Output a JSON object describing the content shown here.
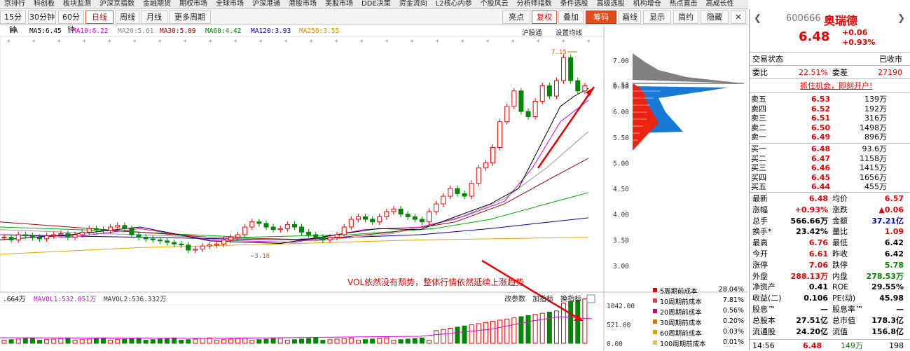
{
  "top_menu": [
    "京排行",
    "科创板",
    "板块监测",
    "沪深京指数",
    "金融期货",
    "期权市场",
    "全球市场",
    "沪深港通",
    "港股市场",
    "美股市场",
    "DDE决策",
    "资金流向",
    "L2核心内参",
    "个股风云",
    "分析师指数",
    "条件选股",
    "高级选股",
    "机构增仓",
    "热点直击",
    "高成长性"
  ],
  "tabs": [
    "15分钟",
    "30分钟",
    "60分钟",
    "日线",
    "周线",
    "月线",
    "更多周期",
    "沪股通",
    "亮点",
    "复权",
    "叠加",
    "筹码",
    "画线",
    "显示",
    "简约",
    "隐藏"
  ],
  "indicators": {
    "ma": "MA",
    "ma5": "MA5:6.45",
    "ma10": "MA10:6.22",
    "ma20": "MA20:5.61",
    "ma30": "MA30:5.09",
    "ma60": "MA60:4.42",
    "ma120": "MA120:3.93",
    "ma250": "MA250:3.55",
    "hgt": "沪股通",
    "setma": "设置均线"
  },
  "annot": {
    "high": "7.15",
    "low": "3.18",
    "text": "VOL依然没有颓势，整体行情依然延续上涨趋势"
  },
  "vol": {
    "vol": ".664万",
    "mavol1": "MAVOL1:532.051万",
    "mavol2": "MAVOL2:536.332万",
    "btn1": "改参数",
    "btn2": "加指标",
    "btn3": "换指标",
    "ax": [
      "1042.00",
      "521.00",
      "0.00"
    ]
  },
  "price_axis": [
    "7.00",
    "6.53",
    "6.50",
    "6.00",
    "5.50",
    "5.00",
    "4.50",
    "4.00",
    "3.50",
    "3.00"
  ],
  "cost_legend": [
    {
      "label": "5周期前成本",
      "val": "28.04%",
      "color": "#e00"
    },
    {
      "label": "10周期前成本",
      "val": "7.81%",
      "color": "#e04040"
    },
    {
      "label": "20周期前成本",
      "val": "0.56%",
      "color": "#d0007a"
    },
    {
      "label": "30周期前成本",
      "val": "0.20%",
      "color": "#e07000"
    },
    {
      "label": "60周期前成本",
      "val": "0.03%",
      "color": "#e0a000"
    },
    {
      "label": "100周期前成本",
      "val": "0.01%",
      "color": "#e0c060"
    }
  ],
  "stock": {
    "code": "600666",
    "name": "奥瑞德",
    "price": "6.48",
    "chg": "+0.06",
    "pct": "+0.93%",
    "status_label": "交易状态",
    "status": "已收市",
    "wb_label": "委比",
    "wb": "22.51%",
    "wc_label": "委差",
    "wc": "27190",
    "ad": "抓住机会，即刻开户!"
  },
  "asks": [
    {
      "l": "卖五",
      "p": "6.53",
      "v": "139万"
    },
    {
      "l": "卖四",
      "p": "6.52",
      "v": "192万"
    },
    {
      "l": "卖三",
      "p": "6.51",
      "v": "316万"
    },
    {
      "l": "卖二",
      "p": "6.50",
      "v": "1498万"
    },
    {
      "l": "卖一",
      "p": "6.49",
      "v": "896万"
    }
  ],
  "bids": [
    {
      "l": "买一",
      "p": "6.48",
      "v": "93.6万"
    },
    {
      "l": "买二",
      "p": "6.47",
      "v": "1158万"
    },
    {
      "l": "买三",
      "p": "6.46",
      "v": "1415万"
    },
    {
      "l": "买四",
      "p": "6.45",
      "v": "1656万"
    },
    {
      "l": "买五",
      "p": "6.44",
      "v": "455万"
    }
  ],
  "quote": [
    {
      "a": "最新",
      "av": "6.48",
      "ac": "red",
      "b": "均价",
      "bv": "6.57",
      "bc": "red"
    },
    {
      "a": "涨幅",
      "av": "+0.93%",
      "ac": "red",
      "b": "涨跌",
      "bv": "▲0.06",
      "bc": "red"
    },
    {
      "a": "总手",
      "av": "566.66万",
      "ac": "",
      "b": "金额",
      "bv": "37.21亿",
      "bc": "blue"
    },
    {
      "a": "换手*",
      "av": "23.42%",
      "ac": "",
      "b": "量比",
      "bv": "1.09",
      "bc": "red"
    },
    {
      "a": "最高",
      "av": "6.76",
      "ac": "red",
      "b": "最低",
      "bv": "6.42",
      "bc": ""
    },
    {
      "a": "今开",
      "av": "6.61",
      "ac": "red",
      "b": "昨收",
      "bv": "6.42",
      "bc": ""
    },
    {
      "a": "涨停",
      "av": "7.06",
      "ac": "red",
      "b": "跌停",
      "bv": "5.78",
      "bc": "green"
    },
    {
      "a": "外盘",
      "av": "288.13万",
      "ac": "red",
      "b": "内盘",
      "bv": "278.53万",
      "bc": "green"
    },
    {
      "a": "净资产",
      "av": "0.41",
      "ac": "",
      "b": "ROE",
      "bv": "29.55%",
      "bc": ""
    },
    {
      "a": "收益(二)",
      "av": "0.106",
      "ac": "",
      "b": "PE(动)",
      "bv": "45.98",
      "bc": ""
    },
    {
      "a": "股息™",
      "av": "—",
      "ac": "",
      "b": "股息率™",
      "bv": "—",
      "bc": ""
    },
    {
      "a": "总股本",
      "av": "27.51亿",
      "ac": "",
      "b": "总市值",
      "bv": "178.3亿",
      "bc": ""
    },
    {
      "a": "流通股",
      "av": "24.20亿",
      "ac": "",
      "b": "流值",
      "bv": "156.8亿",
      "bc": ""
    }
  ],
  "tick": {
    "time": "14:56",
    "price": "6.48",
    "vol": "149万",
    "n": "198"
  },
  "colors": {
    "up": "#e00",
    "down": "#080",
    "ma5": "#000",
    "ma10": "#e000e0",
    "ma20": "#999",
    "ma30": "#a00000",
    "ma60": "#0a0",
    "ma120": "#00a",
    "ma250": "#f0a000"
  }
}
